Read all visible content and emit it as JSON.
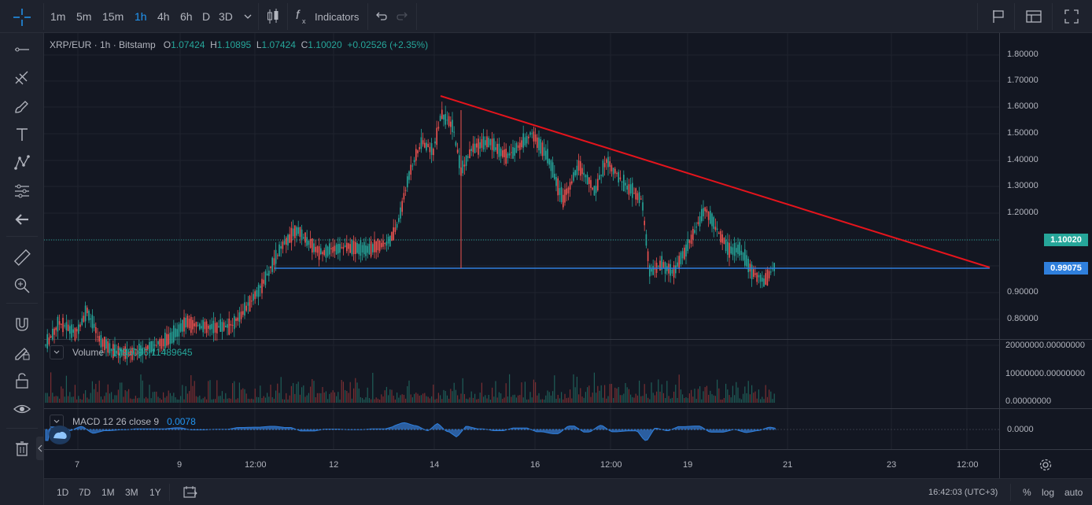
{
  "toolbar": {
    "timeframes": [
      "1m",
      "5m",
      "15m",
      "1h",
      "4h",
      "6h",
      "D",
      "3D"
    ],
    "active_timeframe": "1h",
    "indicators_label": "Indicators"
  },
  "legend": {
    "symbol": "XRP/EUR · 1h · Bitstamp",
    "o_label": "O",
    "open": "1.07424",
    "h_label": "H",
    "high": "1.10895",
    "l_label": "L",
    "low": "1.07424",
    "c_label": "C",
    "close": "1.10020",
    "change": "+0.02526 (+2.35%)"
  },
  "volume_pane": {
    "label": "Volume",
    "value": "1795096.11489645"
  },
  "macd_pane": {
    "label": "MACD 12 26 close 9",
    "value": "0.0078"
  },
  "price_axis": [
    "1.80000",
    "1.70000",
    "1.60000",
    "1.50000",
    "1.40000",
    "1.30000",
    "1.20000",
    "0.90000",
    "0.80000"
  ],
  "current_price_tag": "1.10020",
  "support_price_tag": "0.99075",
  "volume_axis": [
    "20000000.00000000",
    "10000000.00000000",
    "0.00000000"
  ],
  "macd_axis": [
    "0.0000"
  ],
  "time_axis": [
    "7",
    "9",
    "12:00",
    "12",
    "14",
    "16",
    "12:00",
    "19",
    "21",
    "23",
    "12:00"
  ],
  "bottom": {
    "ranges": [
      "1D",
      "7D",
      "1M",
      "3M",
      "1Y"
    ],
    "time": "16:42:03 (UTC+3)",
    "percent": "%",
    "log": "log",
    "auto": "auto"
  },
  "colors": {
    "up": "#26a69a",
    "down": "#ef5350",
    "trendline": "#e5141c",
    "support": "#2f7fdc",
    "macd_fill": "#2b5ea0",
    "price_tag_green": "#26a69a",
    "price_tag_blue": "#2f7fdc"
  }
}
